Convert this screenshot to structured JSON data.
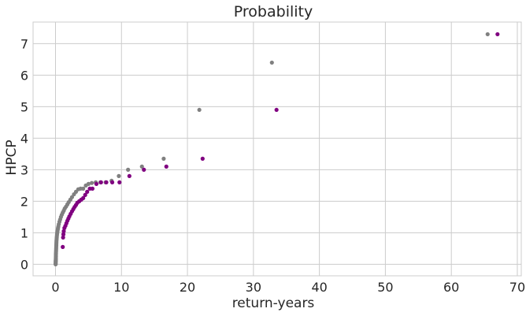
{
  "chart_data": {
    "type": "scatter",
    "title": "Probability",
    "xlabel": "return-years",
    "ylabel": "HPCP",
    "xlim": [
      -3.4,
      70.6
    ],
    "ylim": [
      -0.366,
      7.686
    ],
    "xticks": [
      0,
      10,
      20,
      30,
      40,
      50,
      60,
      70
    ],
    "yticks": [
      0,
      1,
      2,
      3,
      4,
      5,
      6,
      7
    ],
    "grid": true,
    "legend": "none",
    "series": [
      {
        "color": "#808080",
        "points": [
          [
            0.02,
            0.0
          ],
          [
            0.02,
            0.02
          ],
          [
            0.03,
            0.05
          ],
          [
            0.03,
            0.08
          ],
          [
            0.04,
            0.1
          ],
          [
            0.04,
            0.13
          ],
          [
            0.05,
            0.16
          ],
          [
            0.05,
            0.2
          ],
          [
            0.06,
            0.25
          ],
          [
            0.06,
            0.3
          ],
          [
            0.07,
            0.35
          ],
          [
            0.08,
            0.4
          ],
          [
            0.09,
            0.45
          ],
          [
            0.1,
            0.5
          ],
          [
            0.11,
            0.55
          ],
          [
            0.12,
            0.6
          ],
          [
            0.13,
            0.65
          ],
          [
            0.14,
            0.7
          ],
          [
            0.15,
            0.75
          ],
          [
            0.17,
            0.8
          ],
          [
            0.19,
            0.85
          ],
          [
            0.21,
            0.9
          ],
          [
            0.23,
            0.95
          ],
          [
            0.26,
            1.0
          ],
          [
            0.3,
            1.05
          ],
          [
            0.34,
            1.1
          ],
          [
            0.38,
            1.15
          ],
          [
            0.43,
            1.2
          ],
          [
            0.5,
            1.27
          ],
          [
            0.6,
            1.35
          ],
          [
            0.7,
            1.42
          ],
          [
            0.82,
            1.5
          ],
          [
            0.95,
            1.57
          ],
          [
            1.1,
            1.64
          ],
          [
            1.25,
            1.7
          ],
          [
            1.4,
            1.77
          ],
          [
            1.6,
            1.83
          ],
          [
            1.8,
            1.9
          ],
          [
            2.0,
            1.97
          ],
          [
            2.25,
            2.05
          ],
          [
            2.5,
            2.13
          ],
          [
            2.8,
            2.22
          ],
          [
            3.1,
            2.3
          ],
          [
            3.45,
            2.38
          ],
          [
            3.8,
            2.4
          ],
          [
            4.2,
            2.4
          ],
          [
            4.6,
            2.5
          ],
          [
            5.0,
            2.55
          ],
          [
            5.5,
            2.58
          ],
          [
            6.1,
            2.6
          ],
          [
            6.8,
            2.6
          ],
          [
            7.6,
            2.6
          ],
          [
            8.5,
            2.65
          ],
          [
            9.6,
            2.8
          ],
          [
            11.0,
            3.0
          ],
          [
            13.1,
            3.1
          ],
          [
            16.4,
            3.35
          ],
          [
            21.8,
            4.9
          ],
          [
            32.8,
            6.4
          ],
          [
            65.5,
            7.3
          ]
        ]
      },
      {
        "color": "#800080",
        "points": [
          [
            1.1,
            0.55
          ],
          [
            1.15,
            0.85
          ],
          [
            1.2,
            0.95
          ],
          [
            1.25,
            1.05
          ],
          [
            1.35,
            1.15
          ],
          [
            1.5,
            1.22
          ],
          [
            1.65,
            1.3
          ],
          [
            1.8,
            1.38
          ],
          [
            1.95,
            1.45
          ],
          [
            2.1,
            1.52
          ],
          [
            2.3,
            1.6
          ],
          [
            2.5,
            1.68
          ],
          [
            2.7,
            1.75
          ],
          [
            2.9,
            1.82
          ],
          [
            3.1,
            1.88
          ],
          [
            3.3,
            1.95
          ],
          [
            3.6,
            2.0
          ],
          [
            3.9,
            2.05
          ],
          [
            4.2,
            2.1
          ],
          [
            4.5,
            2.2
          ],
          [
            4.8,
            2.3
          ],
          [
            5.2,
            2.4
          ],
          [
            5.6,
            2.4
          ],
          [
            6.2,
            2.55
          ],
          [
            6.9,
            2.6
          ],
          [
            7.7,
            2.6
          ],
          [
            8.6,
            2.6
          ],
          [
            9.7,
            2.6
          ],
          [
            11.2,
            2.8
          ],
          [
            13.4,
            3.0
          ],
          [
            16.8,
            3.1
          ],
          [
            22.3,
            3.35
          ],
          [
            33.5,
            4.9
          ],
          [
            67.0,
            7.3
          ]
        ]
      }
    ]
  }
}
